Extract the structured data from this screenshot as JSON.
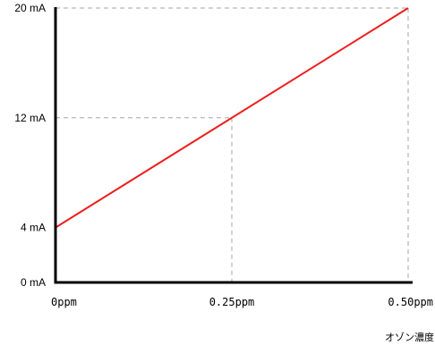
{
  "chart_data": {
    "type": "line",
    "title": "",
    "xlabel": "オゾン濃度",
    "ylabel": "",
    "x": [
      0,
      0.5
    ],
    "y": [
      4,
      20
    ],
    "xlim": [
      0,
      0.5
    ],
    "ylim": [
      0,
      20
    ],
    "x_ticks": [
      {
        "value": 0,
        "label": "0ppm"
      },
      {
        "value": 0.25,
        "label": "0.25ppm"
      },
      {
        "value": 0.5,
        "label": "0.50ppm"
      }
    ],
    "y_ticks": [
      {
        "value": 0,
        "label": "0 mA"
      },
      {
        "value": 4,
        "label": "4 mA"
      },
      {
        "value": 12,
        "label": "12 mA"
      },
      {
        "value": 20,
        "label": "20 mA"
      }
    ],
    "reference_lines": [
      {
        "x": 0.25,
        "y": 12
      },
      {
        "x": 0.5,
        "y": 20
      }
    ],
    "grid": false,
    "line_color": "#ee1c1c",
    "axis_color": "#000000",
    "guide_color": "#a6a6a6"
  }
}
